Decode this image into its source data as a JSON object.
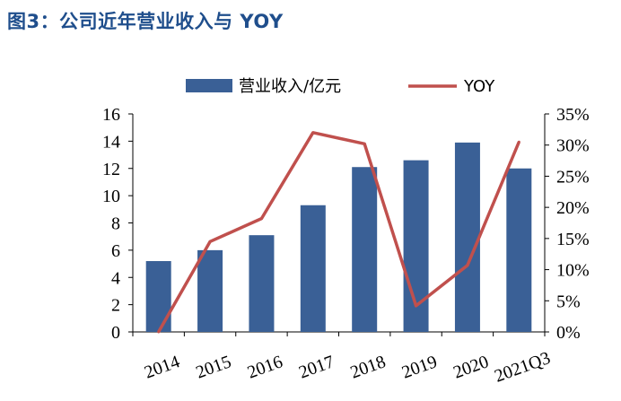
{
  "header": {
    "title": "图3：公司近年营业收入与 YOY"
  },
  "chart_data": {
    "type": "bar",
    "categories": [
      "2014",
      "2015",
      "2016",
      "2017",
      "2018",
      "2019",
      "2020",
      "2021Q3"
    ],
    "series": [
      {
        "name": "营业收入/亿元",
        "type": "bar",
        "axis": "left",
        "values": [
          5.2,
          6.0,
          7.1,
          9.3,
          12.1,
          12.6,
          13.9,
          12.0
        ],
        "color": "#3a6096"
      },
      {
        "name": "YOY",
        "type": "line",
        "axis": "right",
        "values": [
          0.0,
          14.5,
          18.2,
          32.0,
          30.2,
          4.2,
          10.7,
          30.5
        ],
        "color": "#c0504d"
      }
    ],
    "yleft": {
      "lim": [
        0,
        16
      ],
      "ticks": [
        "0",
        "2",
        "4",
        "6",
        "8",
        "10",
        "12",
        "14",
        "16"
      ]
    },
    "yright": {
      "lim": [
        0,
        35
      ],
      "ticks": [
        "0%",
        "5%",
        "10%",
        "15%",
        "20%",
        "25%",
        "30%",
        "35%"
      ]
    },
    "legend": {
      "position": "top"
    },
    "grid": false
  }
}
